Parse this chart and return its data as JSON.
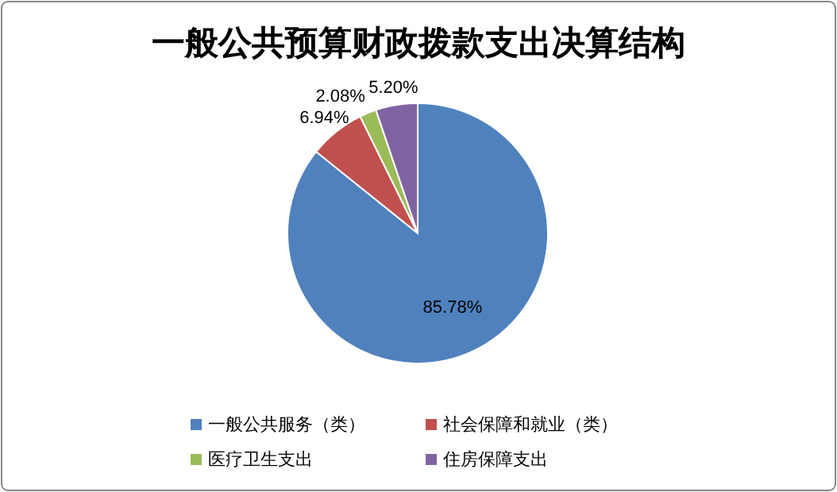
{
  "chart_data": {
    "type": "pie",
    "title": "一般公共预算财政拨款支出决算结构",
    "categories": [
      "一般公共服务（类）",
      "社会保障和就业（类）",
      "医疗卫生支出",
      "住房保障支出"
    ],
    "values": [
      85.78,
      6.94,
      2.08,
      5.2
    ],
    "value_labels": [
      "85.78%",
      "6.94%",
      "2.08%",
      "5.20%"
    ],
    "colors": [
      "#4f81bd",
      "#c0504d",
      "#9bbb59",
      "#8064a2"
    ],
    "legend": "bottom"
  }
}
